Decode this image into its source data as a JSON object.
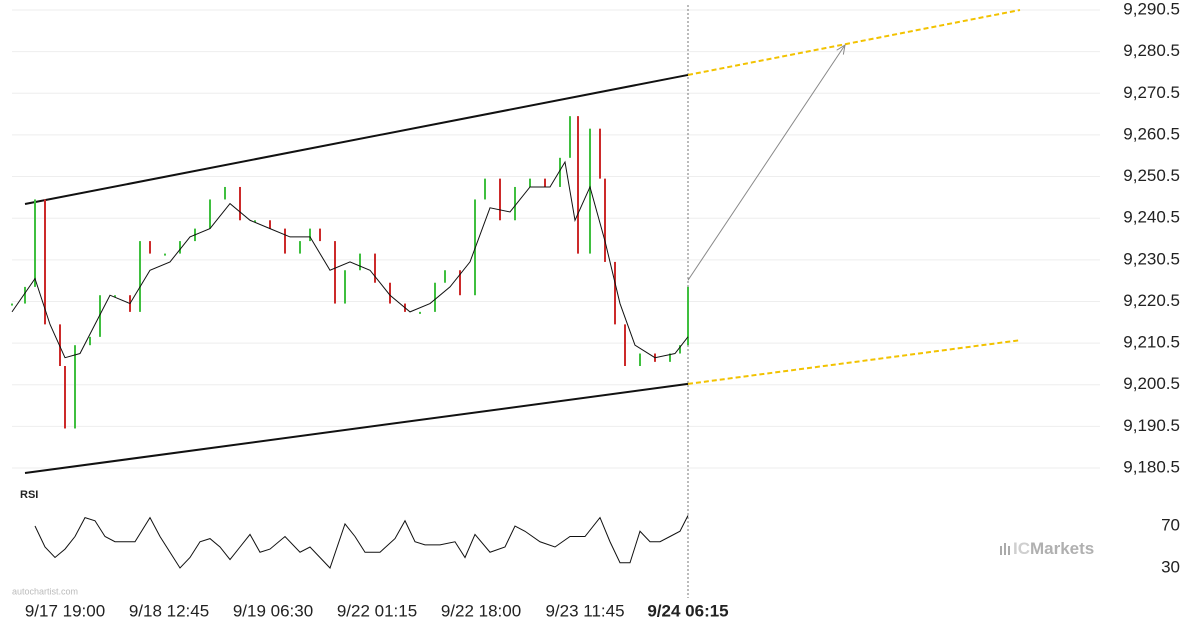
{
  "chart_data": [
    {
      "type": "line",
      "xlim": [
        -53,
        955
      ],
      "xticks": [
        {
          "value": 0,
          "label": "9/17 19:00"
        },
        {
          "value": 104,
          "label": "9/18 12:45"
        },
        {
          "value": 208,
          "label": "9/19 06:30"
        },
        {
          "value": 312,
          "label": "9/22 01:15"
        },
        {
          "value": 416,
          "label": "9/22 18:00"
        },
        {
          "value": 520,
          "label": "9/23 11:45"
        },
        {
          "value": 623,
          "label": "9/24 06:15"
        }
      ],
      "ylim": [
        9177,
        9292
      ],
      "yticks": [
        {
          "value": 9180.5,
          "label": "9,180.5"
        },
        {
          "value": 9190.5,
          "label": "9,190.5"
        },
        {
          "value": 9200.5,
          "label": "9,200.5"
        },
        {
          "value": 9210.5,
          "label": "9,210.5"
        },
        {
          "value": 9220.5,
          "label": "9,220.5"
        },
        {
          "value": 9230.5,
          "label": "9,230.5"
        },
        {
          "value": 9240.5,
          "label": "9,240.5"
        },
        {
          "value": 9250.5,
          "label": "9,250.5"
        },
        {
          "value": 9260.5,
          "label": "9,260.5"
        },
        {
          "value": 9270.5,
          "label": "9,270.5"
        },
        {
          "value": 9280.5,
          "label": "9,280.5"
        },
        {
          "value": 9290.5,
          "label": "9,290.5"
        }
      ],
      "grid": true,
      "series": [
        {
          "style": "bars",
          "up_color": "#3fbf3f",
          "down_color": "#cc2a2a",
          "x": [
            -53,
            -40,
            -30,
            -20,
            -5,
            0,
            10,
            25,
            35,
            50,
            65,
            75,
            85,
            100,
            115,
            130,
            145,
            160,
            175,
            190,
            205,
            220,
            235,
            245,
            255,
            270,
            280,
            295,
            310,
            325,
            340,
            355,
            370,
            380,
            395,
            410,
            420,
            435,
            450,
            465,
            480,
            495,
            505,
            513,
            525,
            535,
            540,
            550,
            560,
            575,
            590,
            605,
            615,
            623
          ],
          "values": [
            9220,
            9224,
            9245,
            9215,
            9205,
            9190,
            9210,
            9212,
            9222,
            9222,
            9218,
            9235,
            9232,
            9232,
            9235,
            9238,
            9245,
            9248,
            9240,
            9240,
            9238,
            9232,
            9235,
            9238,
            9235,
            9220,
            9228,
            9232,
            9225,
            9220,
            9218,
            9218,
            9225,
            9228,
            9222,
            9245,
            9250,
            9240,
            9248,
            9250,
            9248,
            9255,
            9265,
            9232,
            9262,
            9250,
            9230,
            9215,
            9205,
            9208,
            9206,
            9208,
            9210,
            9224
          ]
        },
        {
          "style": "line",
          "color": "#111111",
          "x": [
            -53,
            -30,
            -15,
            0,
            15,
            30,
            45,
            65,
            85,
            105,
            125,
            145,
            165,
            185,
            205,
            225,
            245,
            265,
            285,
            305,
            325,
            345,
            365,
            385,
            405,
            425,
            445,
            465,
            485,
            500,
            510,
            525,
            540,
            555,
            570,
            590,
            610,
            623
          ],
          "values": [
            9218,
            9226,
            9215,
            9207,
            9208,
            9215,
            9222,
            9220,
            9228,
            9230,
            9236,
            9238,
            9244,
            9240,
            9238,
            9236,
            9236,
            9228,
            9230,
            9228,
            9222,
            9218,
            9220,
            9224,
            9230,
            9243,
            9242,
            9248,
            9248,
            9254,
            9240,
            9248,
            9235,
            9220,
            9210,
            9207,
            9208,
            9212
          ]
        }
      ],
      "lines": [
        {
          "style": "solid",
          "color": "#111111",
          "x": [
            -40,
            623
          ],
          "y": [
            9243.9,
            9274.9
          ]
        },
        {
          "style": "dashed",
          "color": "#f2c200",
          "x": [
            623,
            955
          ],
          "y": [
            9274.9,
            9290.5
          ]
        },
        {
          "style": "solid",
          "color": "#111111",
          "x": [
            -40,
            623
          ],
          "y": [
            9179.3,
            9200.7
          ]
        },
        {
          "style": "dashed",
          "color": "#f2c200",
          "x": [
            623,
            955
          ],
          "y": [
            9200.7,
            9211.2
          ]
        },
        {
          "style": "arrow",
          "color": "#888888",
          "x": [
            623,
            780
          ],
          "y": [
            9225.6,
            9282.1
          ]
        }
      ]
    },
    {
      "type": "line",
      "title": "RSI",
      "xlim": [
        -53,
        955
      ],
      "ylim": [
        20,
        90
      ],
      "yticks": [
        70,
        30
      ],
      "series": [
        {
          "style": "line",
          "color": "#111111",
          "x": [
            -30,
            -20,
            -10,
            0,
            10,
            20,
            30,
            40,
            50,
            60,
            70,
            85,
            95,
            105,
            115,
            125,
            135,
            145,
            155,
            165,
            175,
            185,
            195,
            205,
            220,
            235,
            245,
            255,
            265,
            280,
            290,
            300,
            315,
            330,
            340,
            350,
            360,
            375,
            390,
            400,
            410,
            425,
            440,
            450,
            460,
            475,
            490,
            505,
            520,
            535,
            545,
            555,
            565,
            575,
            585,
            595,
            605,
            615,
            623
          ],
          "values": [
            70,
            50,
            40,
            48,
            60,
            78,
            75,
            60,
            55,
            55,
            55,
            78,
            60,
            45,
            30,
            40,
            55,
            58,
            50,
            38,
            50,
            62,
            45,
            48,
            60,
            45,
            50,
            40,
            30,
            72,
            60,
            45,
            45,
            58,
            75,
            55,
            52,
            52,
            55,
            40,
            62,
            45,
            50,
            70,
            65,
            55,
            50,
            60,
            60,
            78,
            55,
            35,
            35,
            65,
            55,
            55,
            60,
            65,
            80
          ]
        }
      ]
    }
  ],
  "watermark": "autochartist.com",
  "logo": {
    "prefix": "IC",
    "text": "Markets"
  }
}
